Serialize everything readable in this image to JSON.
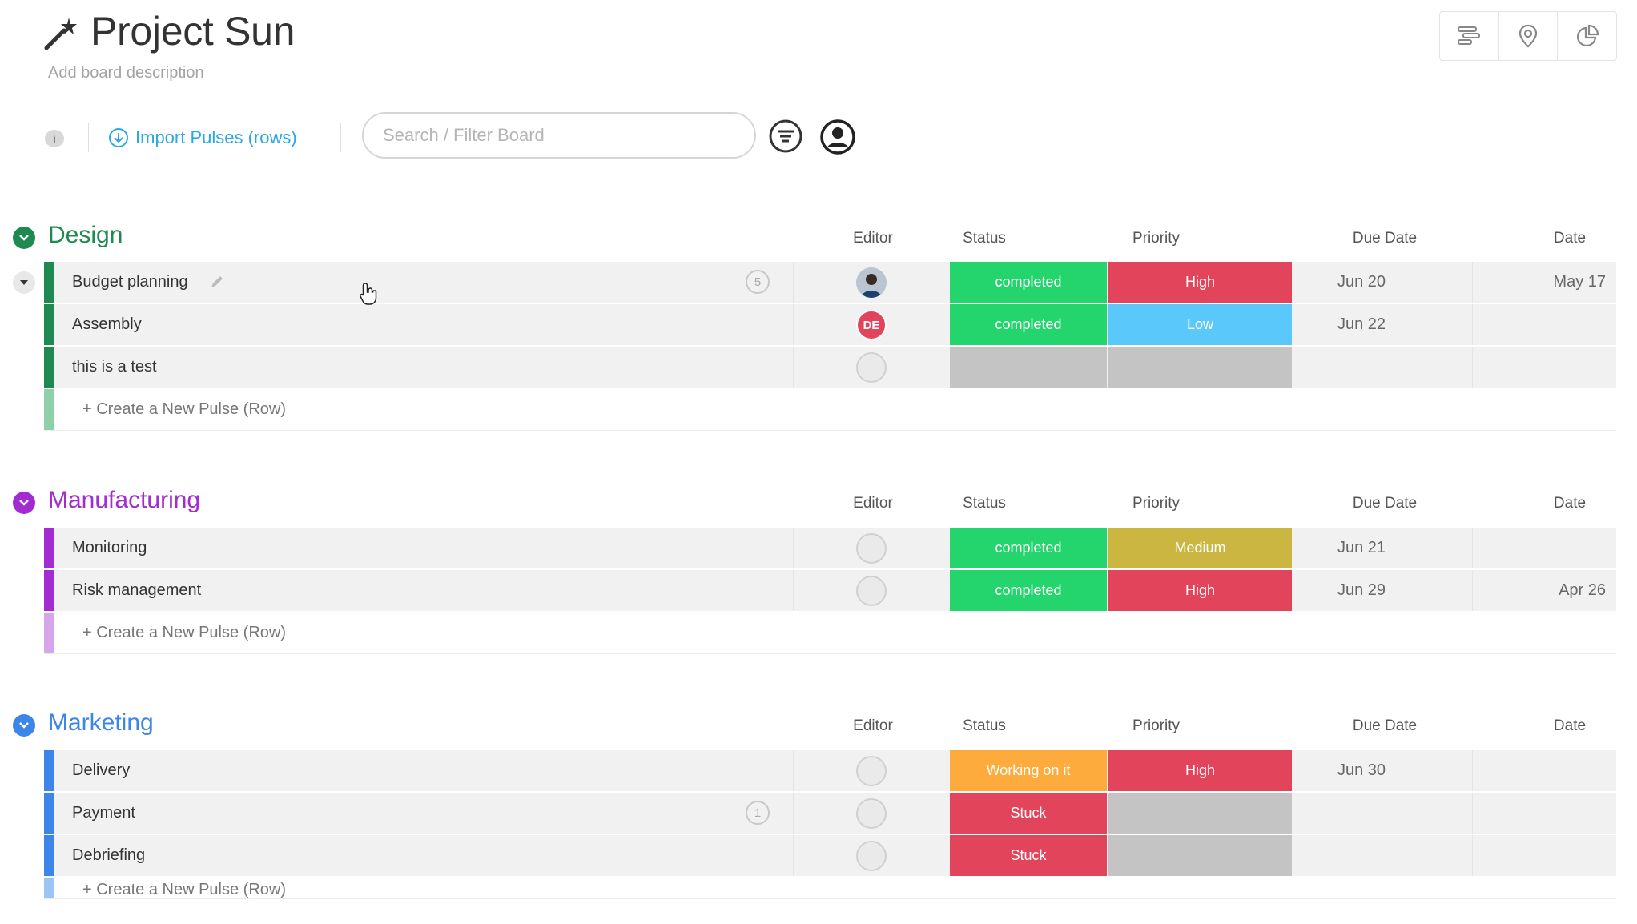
{
  "board": {
    "title": "Project Sun",
    "description": "Add board description",
    "icon": "magic-wand-icon"
  },
  "toolbar": {
    "info_label": "i",
    "import_label": "Import Pulses (rows)",
    "search_placeholder": "Search / Filter Board",
    "top_right_icons": [
      "timeline-icon",
      "map-pin-icon",
      "pie-chart-icon"
    ]
  },
  "colors": {
    "done": "#24d46c",
    "stuck": "#e2445c",
    "working": "#fdab3d",
    "high": "#e2445c",
    "low": "#5ac8fa",
    "medium": "#cab641",
    "empty": "#c4c4c4",
    "accent": "#2aa8e0"
  },
  "columns": [
    "Editor",
    "Status",
    "Priority",
    "Due Date",
    "Date"
  ],
  "add_row_label": "+ Create a New Pulse (Row)",
  "groups": [
    {
      "name": "Design",
      "color": "#1e8a52",
      "rows": [
        {
          "name": "Budget planning",
          "updates": "5",
          "editor": "photo",
          "status": "completed",
          "status_color": "#24d46c",
          "priority": "High",
          "priority_color": "#e2445c",
          "due": "Jun 20",
          "date": "May 17"
        },
        {
          "name": "Assembly",
          "updates": "",
          "editor": "DE",
          "status": "completed",
          "status_color": "#24d46c",
          "priority": "Low",
          "priority_color": "#5ac8fa",
          "due": "Jun 22",
          "date": ""
        },
        {
          "name": "this is a test",
          "updates": "",
          "editor": "",
          "status": "",
          "status_color": "#c4c4c4",
          "priority": "",
          "priority_color": "#c4c4c4",
          "due": "",
          "date": ""
        }
      ]
    },
    {
      "name": "Manufacturing",
      "color": "#a22bd1",
      "rows": [
        {
          "name": "Monitoring",
          "updates": "",
          "editor": "",
          "status": "completed",
          "status_color": "#24d46c",
          "priority": "Medium",
          "priority_color": "#cab641",
          "due": "Jun 21",
          "date": ""
        },
        {
          "name": "Risk management",
          "updates": "",
          "editor": "",
          "status": "completed",
          "status_color": "#24d46c",
          "priority": "High",
          "priority_color": "#e2445c",
          "due": "Jun 29",
          "date": "Apr 26"
        }
      ]
    },
    {
      "name": "Marketing",
      "color": "#3b86e8",
      "rows": [
        {
          "name": "Delivery",
          "updates": "",
          "editor": "",
          "status": "Working on it",
          "status_color": "#fdab3d",
          "priority": "High",
          "priority_color": "#e2445c",
          "due": "Jun 30",
          "date": ""
        },
        {
          "name": "Payment",
          "updates": "1",
          "editor": "",
          "status": "Stuck",
          "status_color": "#e2445c",
          "priority": "",
          "priority_color": "#c4c4c4",
          "due": "",
          "date": ""
        },
        {
          "name": "Debriefing",
          "updates": "",
          "editor": "",
          "status": "Stuck",
          "status_color": "#e2445c",
          "priority": "",
          "priority_color": "#c4c4c4",
          "due": "",
          "date": ""
        }
      ]
    }
  ]
}
